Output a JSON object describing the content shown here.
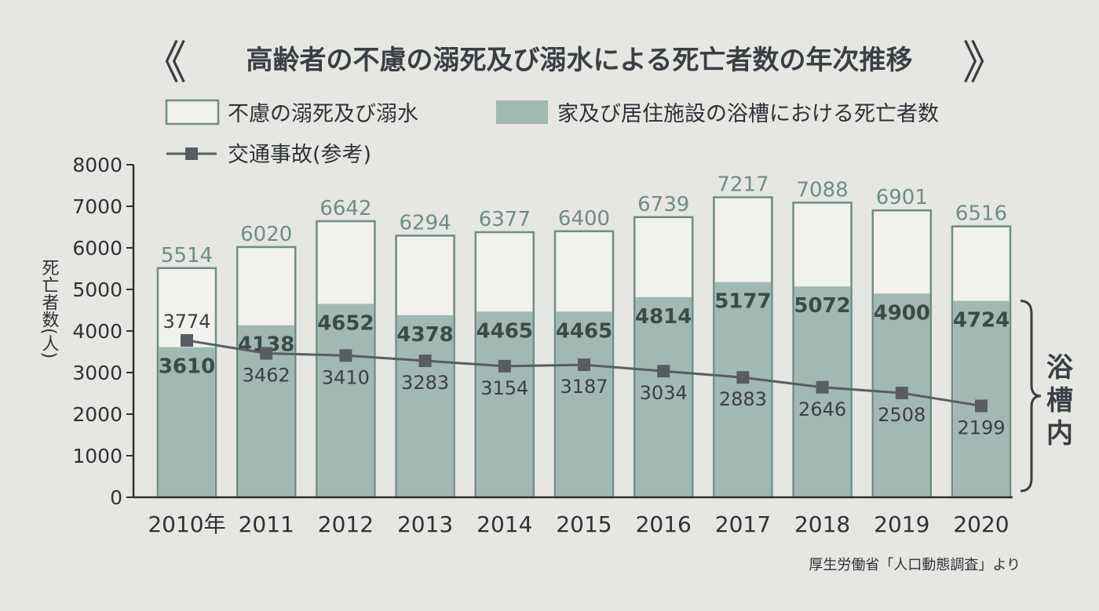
{
  "title": "高齢者の不慮の溺死及び溺水による死亡者数の年次推移",
  "title_brackets": [
    "《",
    "》"
  ],
  "legend": {
    "total": "不慮の溺死及び溺水",
    "bath": "家及び居住施設の浴槽における死亡者数",
    "traffic": "交通事故(参考)"
  },
  "brace_label": [
    "浴",
    "槽",
    "内"
  ],
  "source": "厚生労働省「人口動態調査」より",
  "colors": {
    "background": "#e6e6e3",
    "total_fill": "#f1f1ee",
    "bar_outline": "#6f8d87",
    "bath_fill": "#a2b8b2",
    "line": "#585d61",
    "text": "#2e3237"
  },
  "chart_data": {
    "type": "bar",
    "x": [
      "2010年",
      "2011",
      "2012",
      "2013",
      "2014",
      "2015",
      "2016",
      "2017",
      "2018",
      "2019",
      "2020"
    ],
    "ylabel": "死亡者数(人)",
    "ylim": [
      0,
      8000
    ],
    "yticks": [
      0,
      1000,
      2000,
      3000,
      4000,
      5000,
      6000,
      7000,
      8000
    ],
    "grid": false,
    "legend_position": "top",
    "series": [
      {
        "name": "不慮の溺死及び溺水",
        "type": "bar",
        "values": [
          5514,
          6020,
          6642,
          6294,
          6377,
          6400,
          6739,
          7217,
          7088,
          6901,
          6516
        ]
      },
      {
        "name": "家及び居住施設の浴槽における死亡者数",
        "type": "bar",
        "values": [
          3610,
          4138,
          4652,
          4378,
          4465,
          4465,
          4814,
          5177,
          5072,
          4900,
          4724
        ]
      },
      {
        "name": "交通事故(参考)",
        "type": "line",
        "values": [
          3774,
          3462,
          3410,
          3283,
          3154,
          3187,
          3034,
          2883,
          2646,
          2508,
          2199
        ]
      }
    ]
  }
}
